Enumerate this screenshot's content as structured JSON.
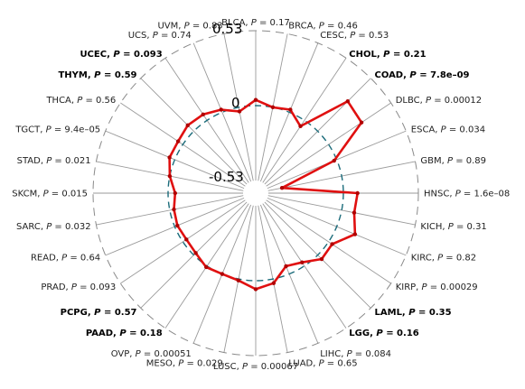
{
  "chart_data": {
    "type": "radar",
    "r_scale_labels": [
      "0.53",
      "0",
      "-0.53"
    ],
    "r_range": [
      -0.53,
      0.53
    ],
    "reference_circle_value": 0,
    "series_color": "#e01010",
    "reference_circle_color": "#1a6b7a",
    "outer_ring_style": "dashed grey",
    "categories": [
      {
        "name": "BLCA",
        "p": "0.17",
        "bold": false,
        "value": 0.04
      },
      {
        "name": "BRCA",
        "p": "0.46",
        "bold": false,
        "value": 0.0
      },
      {
        "name": "CESC",
        "p": "0.53",
        "bold": false,
        "value": 0.02
      },
      {
        "name": "CHOL",
        "p": "0.21",
        "bold": true,
        "value": -0.05
      },
      {
        "name": "COAD",
        "p": "7.8e–09",
        "bold": true,
        "value": 0.3
      },
      {
        "name": "DLBC",
        "p": "0.00012",
        "bold": false,
        "value": 0.28
      },
      {
        "name": "ESCA",
        "p": "0.034",
        "bold": false,
        "value": -0.02
      },
      {
        "name": "GBM",
        "p": "0.89",
        "bold": false,
        "value": -0.43
      },
      {
        "name": "HNSC",
        "p": "1.6e–08",
        "bold": false,
        "value": 0.1
      },
      {
        "name": "KICH",
        "p": "0.31",
        "bold": false,
        "value": 0.09
      },
      {
        "name": "KIRC",
        "p": "0.82",
        "bold": false,
        "value": 0.14
      },
      {
        "name": "KIRP",
        "p": "0.00029",
        "bold": false,
        "value": 0.03
      },
      {
        "name": "LAML",
        "p": "0.35",
        "bold": true,
        "value": 0.04
      },
      {
        "name": "LGG",
        "p": "0.16",
        "bold": true,
        "value": -0.03
      },
      {
        "name": "LIHC",
        "p": "0.084",
        "bold": false,
        "value": -0.06
      },
      {
        "name": "LUAD",
        "p": "0.65",
        "bold": false,
        "value": 0.03
      },
      {
        "name": "LUSC",
        "p": "0.00067",
        "bold": false,
        "value": 0.06
      },
      {
        "name": "MESO",
        "p": "0.029",
        "bold": false,
        "value": 0.01
      },
      {
        "name": "OVP",
        "p": "0.00051",
        "bold": false,
        "value": 0.0
      },
      {
        "name": "PAAD",
        "p": "0.18",
        "bold": true,
        "value": 0.01
      },
      {
        "name": "PCPG",
        "p": "0.57",
        "bold": true,
        "value": -0.02
      },
      {
        "name": "PRAD",
        "p": "0.093",
        "bold": false,
        "value": -0.03
      },
      {
        "name": "READ",
        "p": "0.64",
        "bold": false,
        "value": -0.02
      },
      {
        "name": "SARC",
        "p": "0.032",
        "bold": false,
        "value": -0.03
      },
      {
        "name": "SKCM",
        "p": "0.015",
        "bold": false,
        "value": -0.05
      },
      {
        "name": "STAD",
        "p": "0.021",
        "bold": false,
        "value": 0.0
      },
      {
        "name": "TGCT",
        "p": "9.4e–05",
        "bold": false,
        "value": 0.04
      },
      {
        "name": "THCA",
        "p": "0.56",
        "bold": false,
        "value": 0.04
      },
      {
        "name": "THYM",
        "p": "0.59",
        "bold": true,
        "value": 0.06
      },
      {
        "name": "UCEC",
        "p": "0.093",
        "bold": true,
        "value": 0.05
      },
      {
        "name": "UCS",
        "p": "0.74",
        "bold": false,
        "value": 0.02
      },
      {
        "name": "UVM",
        "p": "0.83",
        "bold": false,
        "value": -0.03
      }
    ]
  }
}
